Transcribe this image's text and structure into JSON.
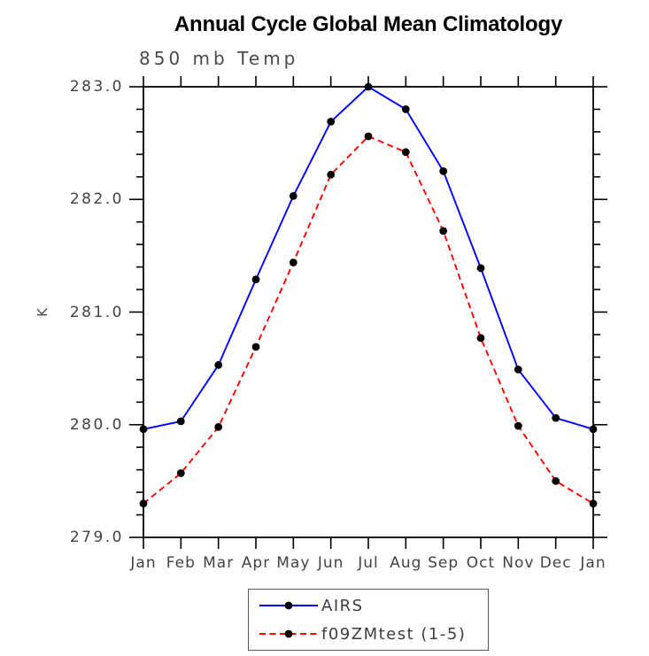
{
  "title": "Annual Cycle Global Mean Climatology",
  "subtitle": "850 mb Temp",
  "chart_data": {
    "type": "line",
    "title": "Annual Cycle Global Mean Climatology",
    "subtitle": "850 mb Temp",
    "xlabel": "",
    "ylabel": "K",
    "categories": [
      "Jan",
      "Feb",
      "Mar",
      "Apr",
      "May",
      "Jun",
      "Jul",
      "Aug",
      "Sep",
      "Oct",
      "Nov",
      "Dec",
      "Jan"
    ],
    "series": [
      {
        "name": "AIRS",
        "color": "#0000ff",
        "line_style": "solid",
        "marker": "filled-circle",
        "marker_color": "#000000",
        "values": [
          279.96,
          280.03,
          280.53,
          281.29,
          282.03,
          282.69,
          283.0,
          282.8,
          282.25,
          281.39,
          280.49,
          280.06,
          279.96
        ]
      },
      {
        "name": "f09ZMtest (1-5)",
        "color": "#ff0000",
        "line_style": "dashed",
        "marker": "filled-circle",
        "marker_color": "#000000",
        "values": [
          279.3,
          279.57,
          279.98,
          280.69,
          281.44,
          282.22,
          282.56,
          282.42,
          281.72,
          280.77,
          279.99,
          279.5,
          279.3
        ]
      }
    ],
    "ylim": [
      279.0,
      283.0
    ],
    "ytick_major": [
      279.0,
      280.0,
      281.0,
      282.0,
      283.0
    ],
    "ytick_labels": [
      "279.0",
      "280.0",
      "281.0",
      "282.0",
      "283.0"
    ],
    "ytick_minor_step": 0.2,
    "grid": false,
    "frame": "box-with-outward-ticks",
    "legend_position": "bottom-center",
    "axis_color": "#000000",
    "label_color": "#424242"
  }
}
